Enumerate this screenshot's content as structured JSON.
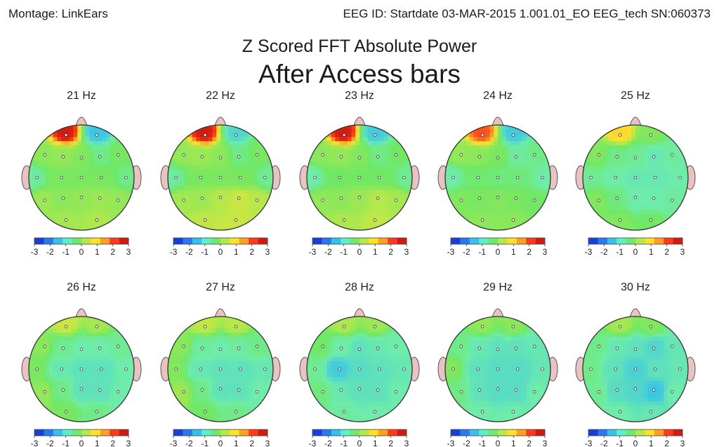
{
  "header": {
    "montage": "Montage:  LinkEars",
    "eeg_id": "EEG ID:  Startdate 03-MAR-2015 1.001.01_EO EEG_tech SN:060373"
  },
  "chart_data": {
    "type": "heatmap",
    "title": "Z Scored FFT Absolute Power",
    "subtitle": "After Access bars",
    "colorscale": {
      "ticks": [
        "-3",
        "-2",
        "-1",
        "0",
        "1",
        "2",
        "3"
      ],
      "colors": [
        "#1a3fd6",
        "#2a78f0",
        "#35c0ee",
        "#5cf0c8",
        "#6ee86e",
        "#b6e84a",
        "#ffe12a",
        "#ffa020",
        "#ff3a1a",
        "#d01c10"
      ]
    },
    "electrodes": [
      "Fp1",
      "Fp2",
      "F7",
      "F3",
      "Fz",
      "F4",
      "F8",
      "T3",
      "C3",
      "Cz",
      "C4",
      "T4",
      "T5",
      "P3",
      "Pz",
      "P4",
      "T6",
      "O1",
      "O2"
    ],
    "maps": [
      {
        "label": "21 Hz",
        "z": {
          "Fp1": 3.0,
          "Fp2": -1.3,
          "F7": 0.3,
          "F3": 0.4,
          "Fz": 0.2,
          "F4": -0.3,
          "F8": 0.1,
          "T3": -0.5,
          "C3": 0.1,
          "Cz": 0.1,
          "C4": 0.1,
          "T4": -0.3,
          "T5": 0.5,
          "P3": 0.3,
          "Pz": 0.4,
          "P4": 0.5,
          "T6": 0.4,
          "O1": 0.6,
          "O2": 0.7
        }
      },
      {
        "label": "22 Hz",
        "z": {
          "Fp1": 3.0,
          "Fp2": -1.0,
          "F7": 0.4,
          "F3": 0.5,
          "Fz": 0.3,
          "F4": -0.3,
          "F8": 0.1,
          "T3": -0.5,
          "C3": 0.1,
          "Cz": 0.1,
          "C4": 0.1,
          "T4": -0.4,
          "T5": 0.6,
          "P3": 0.5,
          "Pz": 0.8,
          "P4": 1.0,
          "T6": 0.8,
          "O1": 0.9,
          "O2": 1.0
        }
      },
      {
        "label": "23 Hz",
        "z": {
          "Fp1": 3.0,
          "Fp2": -1.2,
          "F7": 0.3,
          "F3": 0.4,
          "Fz": 0.2,
          "F4": -0.3,
          "F8": 0.0,
          "T3": -0.6,
          "C3": 0.0,
          "Cz": 0.0,
          "C4": 0.0,
          "T4": -0.4,
          "T5": 0.4,
          "P3": 0.3,
          "Pz": 0.5,
          "P4": 0.8,
          "T6": 0.6,
          "O1": 0.7,
          "O2": 0.9
        }
      },
      {
        "label": "24 Hz",
        "z": {
          "Fp1": 2.5,
          "Fp2": -1.2,
          "F7": 0.4,
          "F3": 0.3,
          "Fz": 0.1,
          "F4": -0.5,
          "F8": -0.3,
          "T3": -0.6,
          "C3": -0.1,
          "Cz": -0.2,
          "C4": -0.2,
          "T4": -0.6,
          "T5": 0.2,
          "P3": 0.1,
          "Pz": 0.2,
          "P4": 0.1,
          "T6": 0.0,
          "O1": 0.3,
          "O2": 0.3
        }
      },
      {
        "label": "25 Hz",
        "z": {
          "Fp1": 1.6,
          "Fp2": 0.2,
          "F7": 0.2,
          "F3": -0.3,
          "Fz": -0.4,
          "F4": -0.7,
          "F8": -0.5,
          "T3": -0.4,
          "C3": -0.6,
          "Cz": -0.7,
          "C4": -0.7,
          "T4": -0.6,
          "T5": 0.2,
          "P3": -0.2,
          "Pz": -0.6,
          "P4": -0.6,
          "T6": -0.5,
          "O1": 0.2,
          "O2": 0.0
        }
      },
      {
        "label": "26 Hz",
        "z": {
          "Fp1": 1.0,
          "Fp2": 0.6,
          "F7": 0.3,
          "F3": -0.4,
          "Fz": -0.6,
          "F4": -0.6,
          "F8": -0.4,
          "T3": 0.1,
          "C3": -0.7,
          "Cz": -0.8,
          "C4": -0.8,
          "T4": -0.6,
          "T5": 0.4,
          "P3": -0.3,
          "Pz": -0.8,
          "P4": -0.8,
          "T6": -0.6,
          "O1": 0.1,
          "O2": -0.3
        }
      },
      {
        "label": "27 Hz",
        "z": {
          "Fp1": 0.9,
          "Fp2": 0.8,
          "F7": 0.3,
          "F3": -0.5,
          "Fz": -0.6,
          "F4": -0.5,
          "F8": -0.3,
          "T3": 0.2,
          "C3": -0.7,
          "Cz": -0.8,
          "C4": -0.8,
          "T4": -0.7,
          "T5": 0.5,
          "P3": -0.3,
          "Pz": -0.8,
          "P4": -0.8,
          "T6": -0.6,
          "O1": 0.0,
          "O2": -0.3
        }
      },
      {
        "label": "28 Hz",
        "z": {
          "Fp1": 0.7,
          "Fp2": 0.5,
          "F7": 0.0,
          "F3": -0.6,
          "Fz": -0.8,
          "F4": -0.7,
          "F8": -0.6,
          "T3": -0.4,
          "C3": -1.2,
          "Cz": -0.9,
          "C4": -0.8,
          "T4": -0.7,
          "T5": -0.2,
          "P3": -0.7,
          "Pz": -0.8,
          "P4": -0.8,
          "T6": -0.6,
          "O1": -0.5,
          "O2": -0.6
        }
      },
      {
        "label": "29 Hz",
        "z": {
          "Fp1": 0.4,
          "Fp2": 0.3,
          "F7": -0.3,
          "F3": -0.7,
          "Fz": -0.8,
          "F4": -0.8,
          "F8": -0.7,
          "T3": 0.2,
          "C3": -0.8,
          "Cz": -0.9,
          "C4": -0.9,
          "T4": -0.7,
          "T5": -0.3,
          "P3": -0.8,
          "Pz": -0.9,
          "P4": -0.9,
          "T6": -0.6,
          "O1": -0.6,
          "O2": -0.6
        }
      },
      {
        "label": "30 Hz",
        "z": {
          "Fp1": 0.6,
          "Fp2": 0.2,
          "F7": -0.3,
          "F3": -0.7,
          "Fz": -0.8,
          "F4": -1.0,
          "F8": -0.7,
          "T3": -0.3,
          "C3": -0.8,
          "Cz": -1.1,
          "C4": -0.8,
          "T4": -0.7,
          "T5": -0.4,
          "P3": -0.9,
          "Pz": -1.0,
          "P4": -1.3,
          "T6": -0.6,
          "O1": -0.6,
          "O2": -0.7
        }
      }
    ]
  }
}
